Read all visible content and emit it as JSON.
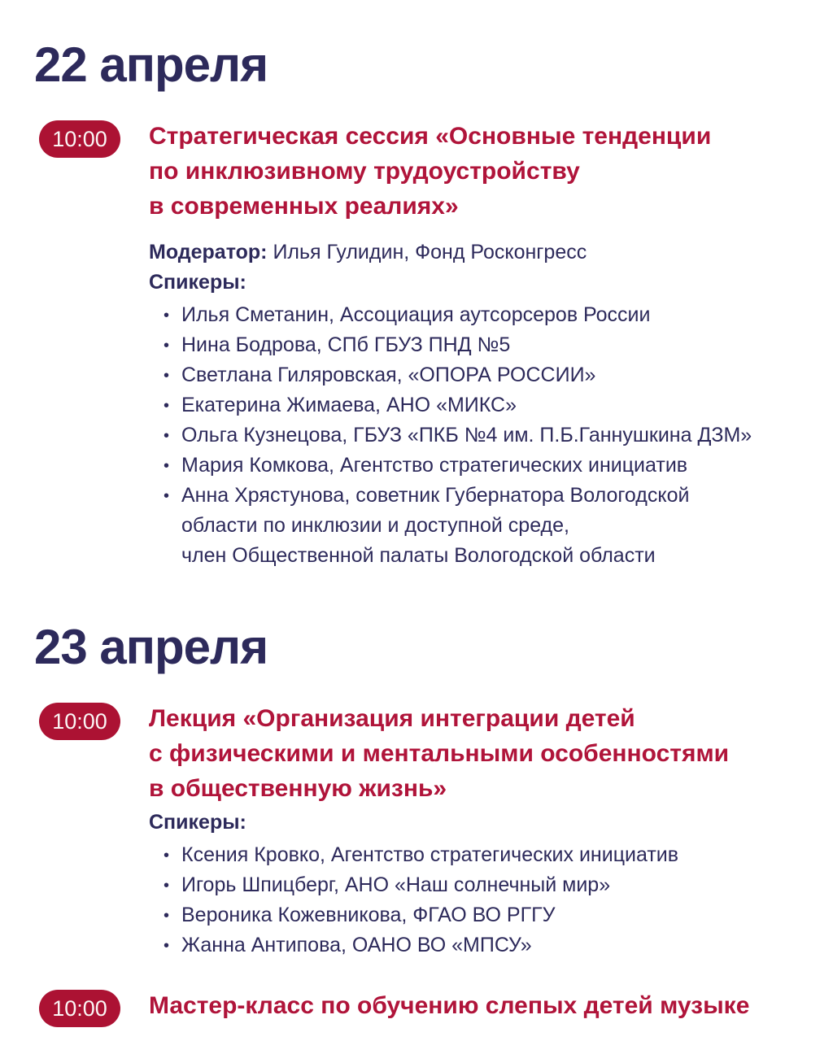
{
  "theme": {
    "background": "#ffffff",
    "navy": "#2d2a5b",
    "red": "#b0143a",
    "badge_red": "#ac1233",
    "badge_text": "#fbf6f5"
  },
  "days": [
    {
      "date": "22 апреля",
      "events": [
        {
          "time": "10:00",
          "title": "Стратегическая сессия «Основные тенденции\nпо инклюзивному трудоустройству\nв современных реалиях»",
          "moderator_label": "Модератор:",
          "moderator": "Илья Гулидин, Фонд Росконгресс",
          "speakers_label": "Спикеры:",
          "speakers": [
            "Илья Сметанин, Ассоциация аутсорсеров России",
            "Нина Бодрова, СПб ГБУЗ ПНД №5",
            "Светлана Гиляровская, «ОПОРА РОССИИ»",
            "Екатерина Жимаева, АНО «МИКС»",
            "Ольга Кузнецова, ГБУЗ «ПКБ №4 им. П.Б.Ганнушкина ДЗМ»",
            "Мария Комкова, Агентство стратегических инициатив",
            "Анна Хрястунова, советник Губернатора Вологодской\nобласти по инклюзии и доступной среде,\nчлен Общественной палаты Вологодской области"
          ]
        }
      ]
    },
    {
      "date": "23 апреля",
      "events": [
        {
          "time": "10:00",
          "title": "Лекция «Организация интеграции детей\nс физическими и ментальными особенностями\nв общественную жизнь»",
          "speakers_label": "Спикеры:",
          "speakers": [
            "Ксения Кровко, Агентство стратегических инициатив",
            "Игорь Шпицберг, АНО «Наш солнечный мир»",
            "Вероника Кожевникова, ФГАО ВО РГГУ",
            "Жанна Антипова, ОАНО ВО «МПСУ»"
          ]
        },
        {
          "time": "10:00",
          "title": "Мастер-класс по обучению слепых детей музыке"
        }
      ]
    }
  ]
}
